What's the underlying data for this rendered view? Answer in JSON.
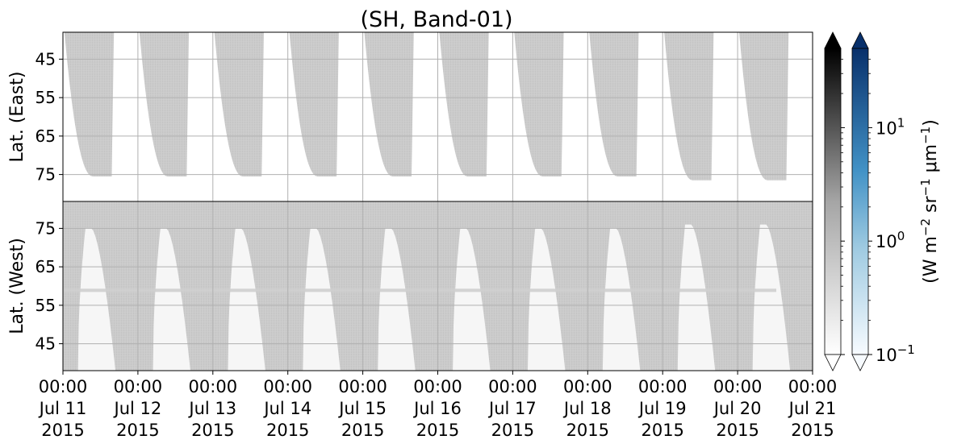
{
  "chart_data": {
    "type": "heatmap",
    "title": "(SH, Band-01)",
    "panels": [
      {
        "id": "east",
        "ylabel": "Lat. (East)",
        "ylim": [
          38,
          82
        ],
        "yticks": [
          45,
          55,
          65,
          75
        ],
        "yinverted": true
      },
      {
        "id": "west",
        "ylabel": "Lat. (West)",
        "ylim": [
          38,
          82
        ],
        "yticks": [
          75,
          65,
          55,
          45
        ],
        "yinverted": false
      }
    ],
    "xtick_labels": [
      {
        "time": "00:00",
        "date": "Jul 11",
        "year": "2015"
      },
      {
        "time": "00:00",
        "date": "Jul 12",
        "year": "2015"
      },
      {
        "time": "00:00",
        "date": "Jul 13",
        "year": "2015"
      },
      {
        "time": "00:00",
        "date": "Jul 14",
        "year": "2015"
      },
      {
        "time": "00:00",
        "date": "Jul 15",
        "year": "2015"
      },
      {
        "time": "00:00",
        "date": "Jul 16",
        "year": "2015"
      },
      {
        "time": "00:00",
        "date": "Jul 17",
        "year": "2015"
      },
      {
        "time": "00:00",
        "date": "Jul 18",
        "year": "2015"
      },
      {
        "time": "00:00",
        "date": "Jul 19",
        "year": "2015"
      },
      {
        "time": "00:00",
        "date": "Jul 20",
        "year": "2015"
      },
      {
        "time": "00:00",
        "date": "Jul 21",
        "year": "2015"
      }
    ],
    "xlim": [
      "2015-07-11 00:00",
      "2015-07-21 00:00"
    ],
    "grid": true,
    "colorbars": [
      {
        "name": "gray",
        "scale": "log",
        "range": [
          0.1,
          50
        ],
        "extend": "both",
        "colors": [
          "#ffffff",
          "#000000"
        ]
      },
      {
        "name": "blues",
        "scale": "log",
        "range": [
          0.1,
          50
        ],
        "extend": "both",
        "colors": [
          "#f7fbff",
          "#08306b"
        ],
        "tick_labels": [
          {
            "value": 10,
            "base": "10",
            "exp": "1"
          },
          {
            "value": 1,
            "base": "10",
            "exp": "0"
          },
          {
            "value": 0.1,
            "base": "10",
            "exp": "−1"
          }
        ],
        "label": {
          "prefix": "(W m",
          "sup1": "−2",
          "mid": " sr",
          "sup2": "−1",
          "mid2": " μm",
          "sup3": "−1",
          "suffix": ")"
        }
      }
    ],
    "east_dark_troughs": [
      {
        "day": 0.4,
        "lat": 75.5
      },
      {
        "day": 1.4,
        "lat": 75.5
      },
      {
        "day": 2.4,
        "lat": 75.5
      },
      {
        "day": 3.4,
        "lat": 75.5
      },
      {
        "day": 4.4,
        "lat": 75.5
      },
      {
        "day": 5.4,
        "lat": 75.5
      },
      {
        "day": 6.4,
        "lat": 75.5
      },
      {
        "day": 7.4,
        "lat": 75.5
      },
      {
        "day": 8.4,
        "lat": 76.5
      },
      {
        "day": 9.4,
        "lat": 76.5
      }
    ],
    "west_bright_peaks": [
      {
        "day": 0.3,
        "lat": 75
      },
      {
        "day": 1.3,
        "lat": 75
      },
      {
        "day": 2.3,
        "lat": 75
      },
      {
        "day": 3.3,
        "lat": 75
      },
      {
        "day": 4.3,
        "lat": 75
      },
      {
        "day": 5.3,
        "lat": 75
      },
      {
        "day": 6.3,
        "lat": 75
      },
      {
        "day": 7.3,
        "lat": 75
      },
      {
        "day": 8.3,
        "lat": 76
      },
      {
        "day": 9.3,
        "lat": 76
      }
    ],
    "colors": {
      "swath": "#cccccc",
      "background": "#ffffff",
      "grid": "#b0b0b0"
    }
  }
}
